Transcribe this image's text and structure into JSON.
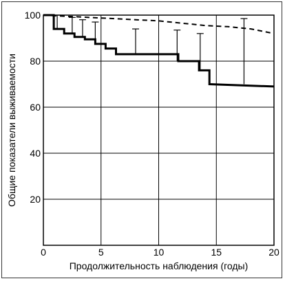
{
  "chart_data": {
    "type": "line",
    "title": "",
    "xlabel": "Продолжительность наблюдения (годы)",
    "ylabel": "Общие показатели выживаемости",
    "xlim": [
      0,
      20
    ],
    "ylim": [
      0,
      100
    ],
    "x_ticks": [
      "0",
      "5",
      "10",
      "15",
      "20"
    ],
    "y_ticks": [
      "20",
      "40",
      "60",
      "80",
      "100"
    ],
    "grid": true,
    "series": [
      {
        "style": "solid-step",
        "x": [
          0,
          0.9,
          0.9,
          1.8,
          1.8,
          2.7,
          2.7,
          3.6,
          3.6,
          4.5,
          4.5,
          5.4,
          5.4,
          6.3,
          6.3,
          11.7,
          11.7,
          13.5,
          13.5,
          14.4,
          14.4,
          20
        ],
        "y": [
          100,
          100,
          94,
          94,
          92,
          92,
          90.5,
          90.5,
          89.5,
          89.5,
          87.5,
          87.5,
          85.5,
          85.5,
          83,
          83,
          80,
          80,
          76,
          76,
          70,
          69
        ]
      },
      {
        "style": "dashed",
        "x": [
          0,
          2,
          4,
          6,
          8,
          10,
          12,
          14,
          16,
          18,
          20
        ],
        "y": [
          100,
          99.5,
          99,
          98.5,
          98,
          97.5,
          96.5,
          95.5,
          95,
          94,
          92
        ]
      }
    ],
    "error_bars": [
      {
        "x": 1.2,
        "low": 94,
        "high": 100
      },
      {
        "x": 2.5,
        "low": 92,
        "high": 99
      },
      {
        "x": 3.4,
        "low": 90.5,
        "high": 98
      },
      {
        "x": 4.5,
        "low": 89.5,
        "high": 97
      },
      {
        "x": 8.0,
        "low": 83,
        "high": 94
      },
      {
        "x": 11.6,
        "low": 80,
        "high": 93.5
      },
      {
        "x": 13.6,
        "low": 76,
        "high": 92
      },
      {
        "x": 17.4,
        "low": 70,
        "high": 98.5
      }
    ]
  }
}
